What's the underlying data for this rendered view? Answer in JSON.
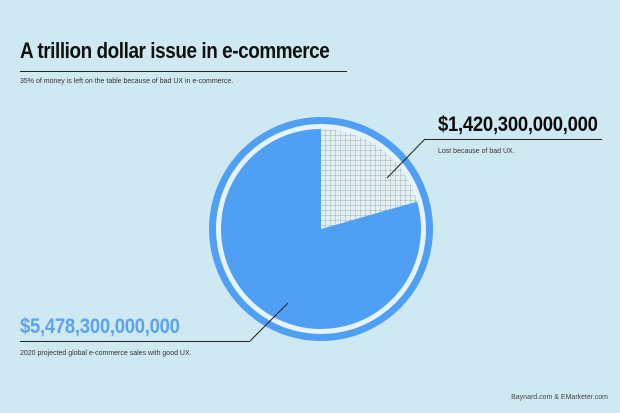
{
  "header": {
    "title": "A trillion dollar issue in e-commerce",
    "subtitle": "35% of money is left on the table because of bad UX in e-commerce."
  },
  "annotations": {
    "lost_value": "$1,420,300,000,000",
    "lost_label": "Lost because of bad UX.",
    "good_value": "$5,478,300,000,000",
    "good_label": "2020 projected global e-commerce sales with good UX."
  },
  "source": "Baynard.com & EMarketer.com",
  "colors": {
    "background": "#cfe9f3",
    "pie_blue": "#4f9ff5",
    "ring_white": "#e6f3fa",
    "grid_fill": "#e4eff2",
    "grid_line": "#5b7b86",
    "accent_text": "#5aa3ef"
  },
  "chart_data": {
    "type": "pie",
    "title": "A trillion dollar issue in e-commerce",
    "slices": [
      {
        "label": "Lost because of bad UX.",
        "value": 1420300000000,
        "pattern": "grid"
      },
      {
        "label": "2020 projected global e-commerce sales with good UX.",
        "value": 5478300000000,
        "pattern": "solid"
      }
    ]
  }
}
